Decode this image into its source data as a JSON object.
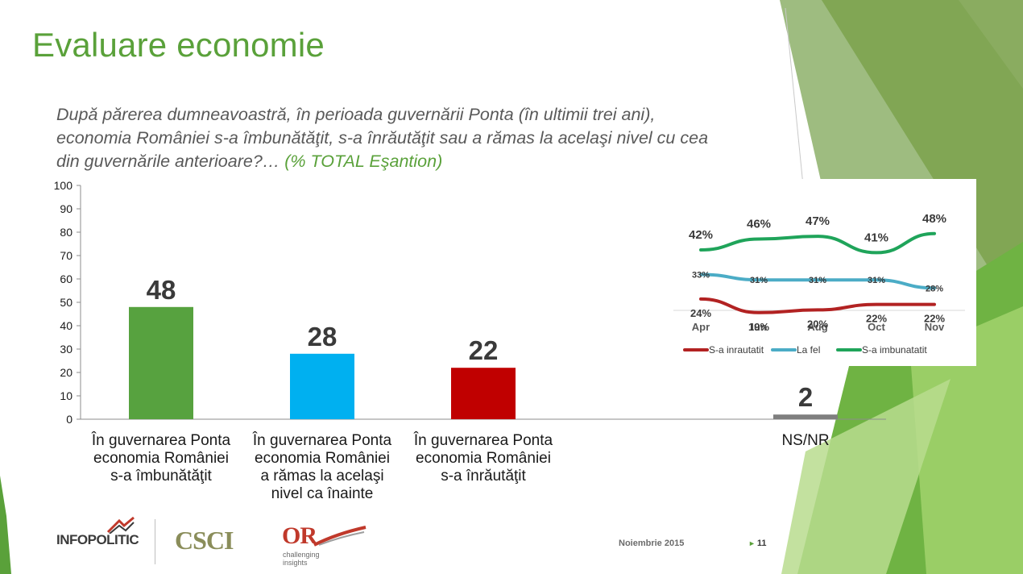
{
  "slide": {
    "title": "Evaluare economie",
    "question": "După părerea dumneavoastră, în perioada guvernării Ponta (în ultimii trei ani), economia României s-a îmbunătăţit, s-a înrăutăţit sau a rămas la acelaşi nivel cu cea din guvernările anterioare?…",
    "question_scope": "(% TOTAL Eşantion)",
    "date": "Noiembrie 2015",
    "page_number": "11"
  },
  "logos": {
    "infopolitic": "INFOPOLITIC",
    "csci": "CSCI",
    "or": "OR",
    "or_tagline": "challenging insights"
  },
  "colors": {
    "title": "#5aa13a",
    "improved": "#57a23f",
    "same": "#00b0f0",
    "worse": "#c00000",
    "nsnr": "#7f7f7f",
    "line_worse": "#b22222",
    "line_same": "#4bacc6",
    "line_improved": "#1fa45a"
  },
  "chart_data": [
    {
      "type": "bar",
      "categories": [
        "În guvernarea Ponta economia României s-a îmbunătăţit",
        "În guvernarea Ponta economia României a rămas la acelaşi nivel ca înainte",
        "În guvernarea Ponta economia României s-a înrăutăţit",
        "",
        "NS/NR"
      ],
      "category_lines": [
        [
          "În guvernarea Ponta",
          "economia României",
          "s-a îmbunătăţit"
        ],
        [
          "În guvernarea Ponta",
          "economia României",
          "a rămas la acelaşi",
          "nivel ca înainte"
        ],
        [
          "În guvernarea Ponta",
          "economia României",
          "s-a înrăutăţit"
        ],
        [],
        [
          "NS/NR"
        ]
      ],
      "values": [
        48,
        28,
        22,
        null,
        2
      ],
      "data_labels": [
        "48",
        "28",
        "22",
        "",
        "2"
      ],
      "bar_colors": [
        "#57a23f",
        "#00b0f0",
        "#c00000",
        "",
        "#7f7f7f"
      ],
      "ylim": [
        0,
        100
      ],
      "yticks": [
        "0",
        "10",
        "20",
        "30",
        "40",
        "50",
        "60",
        "70",
        "80",
        "90",
        "100"
      ],
      "title": "",
      "xlabel": "",
      "ylabel": "",
      "grid": false
    },
    {
      "type": "line",
      "x": [
        "Apr",
        "Iun",
        "Aug",
        "Oct",
        "Nov"
      ],
      "ylim": [
        0,
        60
      ],
      "series": [
        {
          "name": "S-a inrautatit",
          "values": [
            24,
            19,
            20,
            22,
            22
          ],
          "labels": [
            "24%",
            "19%",
            "20%",
            "22%",
            "22%"
          ],
          "color": "#b22222"
        },
        {
          "name": "La fel",
          "values": [
            33,
            31,
            31,
            31,
            28
          ],
          "labels": [
            "33%",
            "31%",
            "31%",
            "31%",
            "28%"
          ],
          "color": "#4bacc6"
        },
        {
          "name": "S-a imbunatatit",
          "values": [
            42,
            46,
            47,
            41,
            48
          ],
          "labels": [
            "42%",
            "46%",
            "47%",
            "41%",
            "48%"
          ],
          "color": "#1fa45a"
        }
      ],
      "legend": "bottom",
      "grid": false
    }
  ]
}
